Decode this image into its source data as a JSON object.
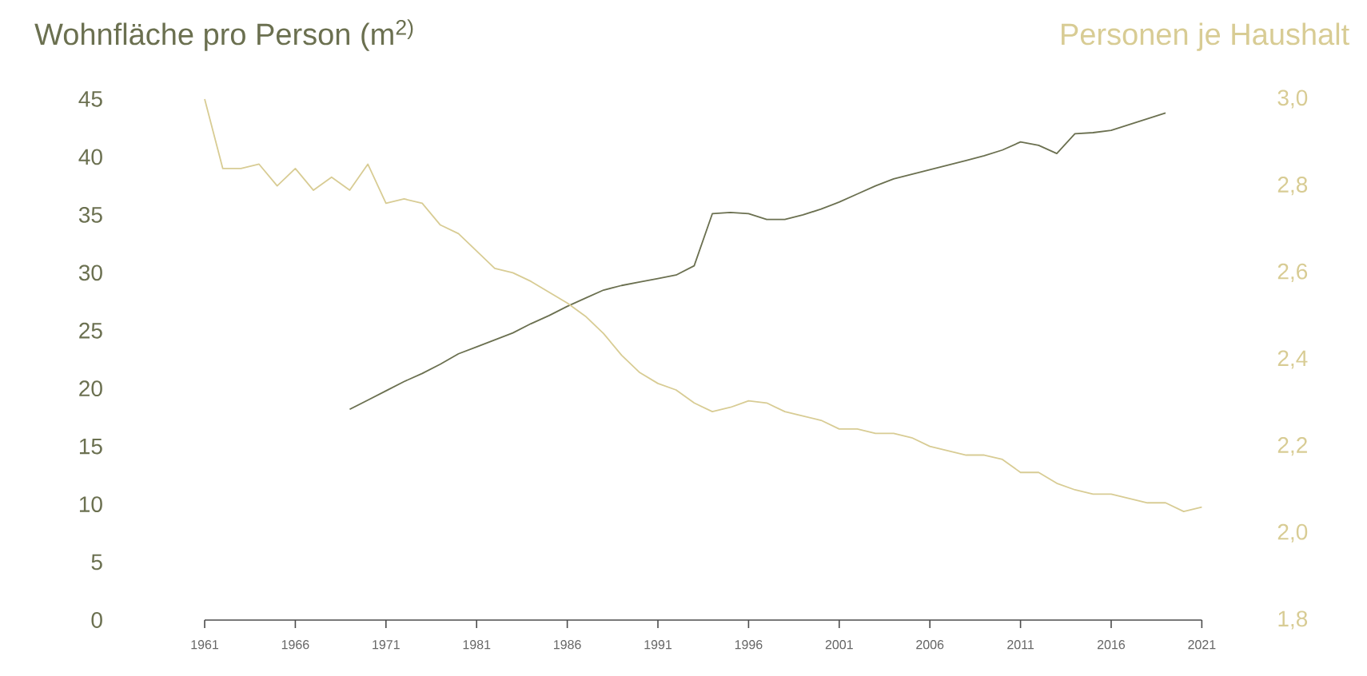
{
  "chart_data": {
    "type": "line",
    "ylabel": "Wohnfläche pro Person (m$^{2)}$",
    "y2label": "Personen je Haushalt",
    "categories": [
      "1961",
      null,
      null,
      null,
      null,
      "1966",
      null,
      null,
      null,
      null,
      "1971",
      null,
      null,
      null,
      null,
      "1981",
      null,
      null,
      null,
      null,
      "1986",
      null,
      null,
      null,
      null,
      "1991",
      null,
      null,
      null,
      null,
      "1996",
      null,
      null,
      null,
      null,
      "2001",
      null,
      null,
      null,
      null,
      "2006",
      null,
      null,
      null,
      null,
      "2011",
      null,
      null,
      null,
      null,
      "2016",
      null,
      null,
      null,
      null,
      "2021"
    ],
    "ylim": [
      0,
      45
    ],
    "yticks": [
      {
        "value": 0,
        "label": "0"
      },
      {
        "value": 5,
        "label": "5"
      },
      {
        "value": 10,
        "label": "10"
      },
      {
        "value": 15,
        "label": "15"
      },
      {
        "value": 20,
        "label": "20"
      },
      {
        "value": 25,
        "label": "25"
      },
      {
        "value": 30,
        "label": "30"
      },
      {
        "value": 35,
        "label": "35"
      },
      {
        "value": 40,
        "label": "40"
      },
      {
        "value": 45,
        "label": "45"
      }
    ],
    "y2lim": [
      1.8,
      3.0
    ],
    "y2ticks": [
      {
        "value": 1.8,
        "label": "1,8"
      },
      {
        "value": 2.0,
        "label": "2,0"
      },
      {
        "value": 2.2,
        "label": "2,2"
      },
      {
        "value": 2.4,
        "label": "2,4"
      },
      {
        "value": 2.6,
        "label": "2,6"
      },
      {
        "value": 2.8,
        "label": "2,8"
      },
      {
        "value": 3.0,
        "label": "3,0"
      }
    ],
    "grid": false,
    "line_style": "solid",
    "series": [
      {
        "axis": "y",
        "color": "#6b7050",
        "values": [
          null,
          null,
          null,
          null,
          null,
          null,
          null,
          null,
          18.2,
          19.0,
          19.8,
          20.6,
          21.3,
          22.1,
          23.0,
          23.6,
          24.2,
          24.8,
          25.6,
          26.3,
          27.1,
          27.8,
          28.5,
          28.9,
          29.2,
          29.5,
          29.8,
          30.6,
          35.1,
          35.2,
          35.1,
          34.6,
          34.6,
          35.0,
          35.5,
          36.1,
          36.8,
          37.5,
          38.1,
          38.5,
          38.9,
          39.3,
          39.7,
          40.1,
          40.6,
          41.3,
          41.0,
          40.3,
          42.0,
          42.1,
          42.3,
          42.8,
          43.3,
          43.8,
          null,
          null
        ]
      },
      {
        "axis": "y2",
        "color": "#d8cc94",
        "values": [
          3.0,
          2.84,
          2.84,
          2.85,
          2.8,
          2.84,
          2.79,
          2.82,
          2.79,
          2.85,
          2.76,
          2.77,
          2.76,
          2.71,
          2.69,
          2.65,
          2.61,
          2.6,
          2.58,
          2.555,
          2.53,
          2.5,
          2.46,
          2.41,
          2.37,
          2.345,
          2.33,
          2.3,
          2.28,
          2.29,
          2.305,
          2.3,
          2.28,
          2.27,
          2.26,
          2.24,
          2.24,
          2.23,
          2.23,
          2.22,
          2.2,
          2.19,
          2.18,
          2.18,
          2.17,
          2.14,
          2.14,
          2.115,
          2.1,
          2.09,
          2.09,
          2.08,
          2.07,
          2.07,
          2.05,
          2.06
        ]
      }
    ]
  }
}
